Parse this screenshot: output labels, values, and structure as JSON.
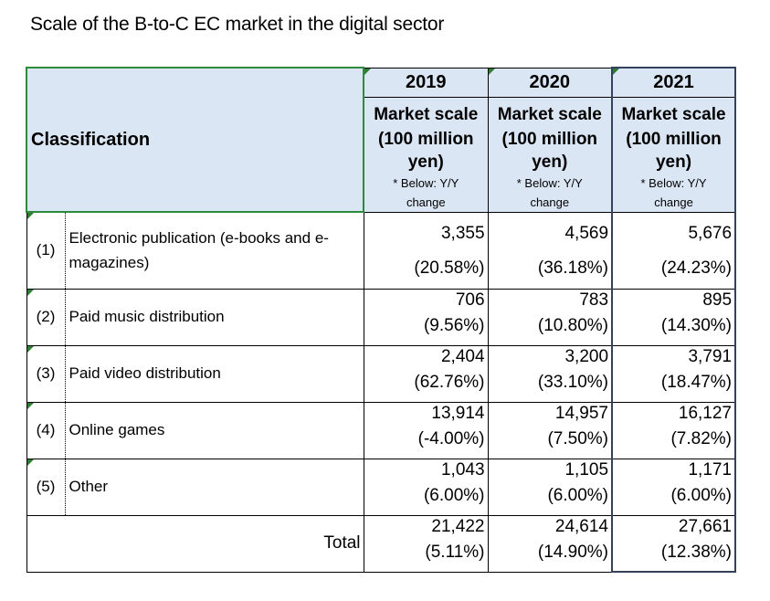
{
  "title": "Scale of the B-to-C EC market in the digital sector",
  "header": {
    "classification": "Classification",
    "years": [
      {
        "year": "2019",
        "l1": "Market scale",
        "l2": "(100 million",
        "l3": "yen)",
        "n1": "* Below: Y/Y",
        "n2": "change"
      },
      {
        "year": "2020",
        "l1": "Market scale",
        "l2": "(100 million",
        "l3": "yen)",
        "n1": "* Below: Y/Y",
        "n2": "change"
      },
      {
        "year": "2021",
        "l1": "Market scale",
        "l2": "(100 million",
        "l3": "yen)",
        "n1": "* Below: Y/Y",
        "n2": "change"
      }
    ]
  },
  "rows": [
    {
      "idx": "(1)",
      "label": "Electronic publication (e-books and e-magazines)",
      "cells": [
        {
          "v": "3,355",
          "c": "(20.58%)"
        },
        {
          "v": "4,569",
          "c": "(36.18%)"
        },
        {
          "v": "5,676",
          "c": "(24.23%)"
        }
      ]
    },
    {
      "idx": "(2)",
      "label": "Paid music distribution",
      "cells": [
        {
          "v": "706",
          "c": "(9.56%)"
        },
        {
          "v": "783",
          "c": "(10.80%)"
        },
        {
          "v": "895",
          "c": "(14.30%)"
        }
      ]
    },
    {
      "idx": "(3)",
      "label": "Paid video distribution",
      "cells": [
        {
          "v": "2,404",
          "c": "(62.76%)"
        },
        {
          "v": "3,200",
          "c": "(33.10%)"
        },
        {
          "v": "3,791",
          "c": "(18.47%)"
        }
      ]
    },
    {
      "idx": "(4)",
      "label": "Online games",
      "cells": [
        {
          "v": "13,914",
          "c": "(-4.00%)"
        },
        {
          "v": "14,957",
          "c": "(7.50%)"
        },
        {
          "v": "16,127",
          "c": "(7.82%)"
        }
      ]
    },
    {
      "idx": "(5)",
      "label": "Other",
      "cells": [
        {
          "v": "1,043",
          "c": "(6.00%)"
        },
        {
          "v": "1,105",
          "c": "(6.00%)"
        },
        {
          "v": "1,171",
          "c": "(6.00%)"
        }
      ]
    }
  ],
  "total": {
    "label": "Total",
    "cells": [
      {
        "v": "21,422",
        "c": "(5.11%)"
      },
      {
        "v": "24,614",
        "c": "(14.90%)"
      },
      {
        "v": "27,661",
        "c": "(12.38%)"
      }
    ]
  },
  "colors": {
    "header_bg": "#dbe6f4",
    "marker_green": "#2e7d32",
    "column_2021_border": "#33415a"
  }
}
